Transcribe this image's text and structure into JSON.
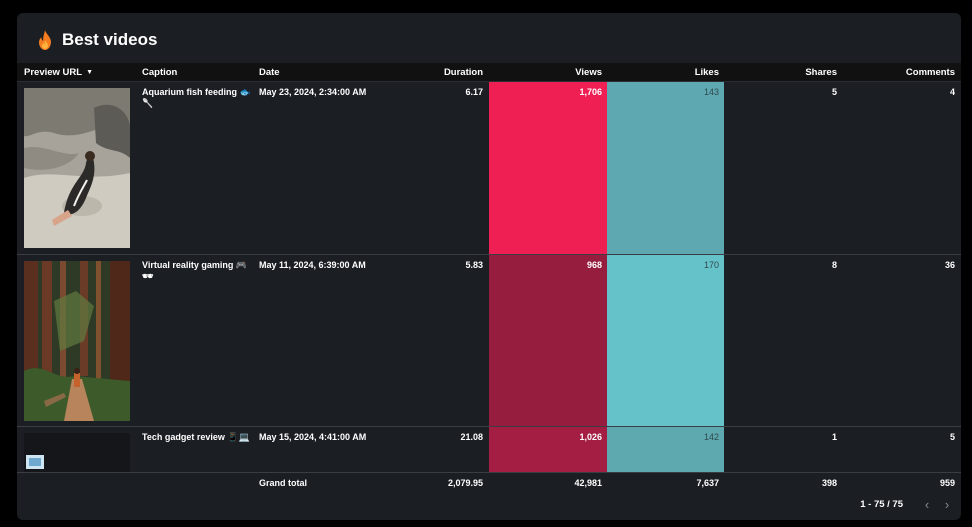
{
  "title": "Best videos",
  "columns": {
    "preview": "Preview URL",
    "caption": "Caption",
    "date": "Date",
    "duration": "Duration",
    "views": "Views",
    "likes": "Likes",
    "shares": "Shares",
    "comments": "Comments"
  },
  "rows": [
    {
      "caption": "Aquarium fish feeding 🐟🥄",
      "date": "May 23, 2024, 2:34:00 AM",
      "duration": "6.17",
      "views": "1,706",
      "likes": "143",
      "shares": "5",
      "comments": "4",
      "views_color": "#ef1f54",
      "likes_color": "#5ea9b1"
    },
    {
      "caption": "Virtual reality gaming 🎮🕶",
      "date": "May 11, 2024, 6:39:00 AM",
      "duration": "5.83",
      "views": "968",
      "likes": "170",
      "shares": "8",
      "comments": "36",
      "views_color": "#961d3e",
      "likes_color": "#66c2c9"
    },
    {
      "caption": "Tech gadget review 📱💻",
      "date": "May 15, 2024, 4:41:00 AM",
      "duration": "21.08",
      "views": "1,026",
      "likes": "142",
      "shares": "1",
      "comments": "5",
      "views_color": "#a31e42",
      "likes_color": "#5ea8b0"
    }
  ],
  "totals": {
    "label": "Grand total",
    "duration": "2,079.95",
    "views": "42,981",
    "likes": "7,637",
    "shares": "398",
    "comments": "959"
  },
  "pager": {
    "text": "1 - 75 / 75",
    "prev": "‹",
    "next": "›"
  }
}
